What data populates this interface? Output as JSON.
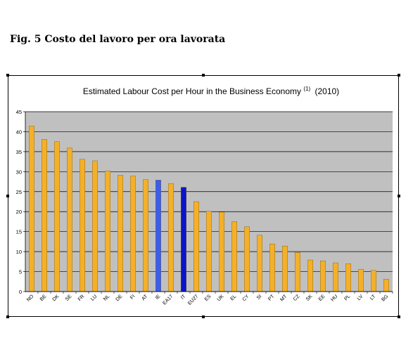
{
  "caption": "Fig. 5 Costo del lavoro per ora lavorata",
  "chart_data": {
    "type": "bar",
    "title": "Estimated Labour Cost per Hour in the Business Economy",
    "title_superscript": "(1)",
    "title_suffix": "(2010)",
    "categories": [
      "NO",
      "BE",
      "DK",
      "SE",
      "FR",
      "LU",
      "NL",
      "DE",
      "FI",
      "AT",
      "IE",
      "EA17",
      "IT",
      "EU27",
      "ES",
      "UK",
      "EL",
      "CY",
      "SI",
      "PT",
      "MT",
      "CZ",
      "SK",
      "EE",
      "HU",
      "PL",
      "LV",
      "LT",
      "BG"
    ],
    "values": [
      41.4,
      38.1,
      37.5,
      35.9,
      33.1,
      32.7,
      30.2,
      29.1,
      28.9,
      28.0,
      27.9,
      27.0,
      26.1,
      22.5,
      20.1,
      19.9,
      17.5,
      16.2,
      14.1,
      11.9,
      11.4,
      9.8,
      7.9,
      7.7,
      7.2,
      7.0,
      5.6,
      5.3,
      3.1
    ],
    "bar_colors": [
      "#f4b02a",
      "#f4b02a",
      "#f4b02a",
      "#f4b02a",
      "#f4b02a",
      "#f4b02a",
      "#f4b02a",
      "#f4b02a",
      "#f4b02a",
      "#f4b02a",
      "#3a5df0",
      "#f4b02a",
      "#0a14c8",
      "#f4b02a",
      "#f4b02a",
      "#f4b02a",
      "#f4b02a",
      "#f4b02a",
      "#f4b02a",
      "#f4b02a",
      "#f4b02a",
      "#f4b02a",
      "#f4b02a",
      "#f4b02a",
      "#f4b02a",
      "#f4b02a",
      "#f4b02a",
      "#f4b02a",
      "#f4b02a"
    ],
    "y_ticks": [
      "0",
      "5",
      "10",
      "15",
      "20",
      "25",
      "30",
      "35",
      "40",
      "45"
    ],
    "ylim": [
      0,
      45
    ],
    "grid": true,
    "plot_background": "#c0c0c0",
    "legend": "none"
  }
}
